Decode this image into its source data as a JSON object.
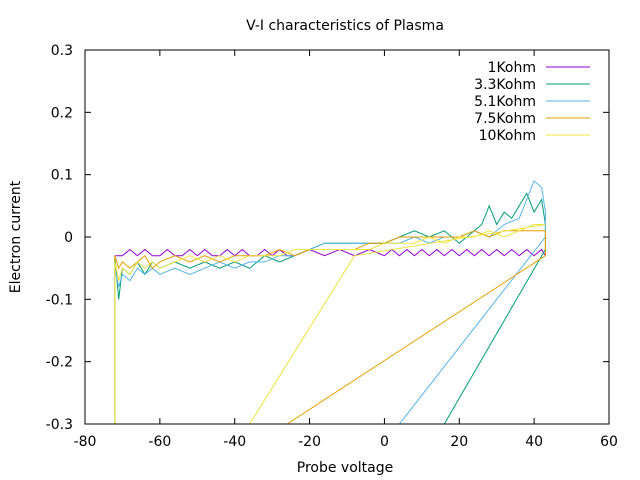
{
  "chart_data": {
    "type": "line",
    "title": "V-I characteristics of Plasma",
    "xlabel": "Probe voltage",
    "ylabel": "Electron current",
    "xlim": [
      -80,
      60
    ],
    "ylim": [
      -0.3,
      0.3
    ],
    "xticks": [
      -80,
      -60,
      -40,
      -20,
      0,
      20,
      40,
      60
    ],
    "xtick_labels": [
      "-80",
      "-60",
      "-40",
      "-20",
      "0",
      "20",
      "40",
      "60"
    ],
    "yticks": [
      -0.3,
      -0.2,
      -0.1,
      0,
      0.1,
      0.2,
      0.3
    ],
    "ytick_labels": [
      "-0.3",
      "-0.2",
      "-0.1",
      "0",
      "0.1",
      "0.2",
      "0.3"
    ],
    "grid": false,
    "legend_position": "top-right",
    "series": [
      {
        "name": "1Kohm",
        "color": "#9400d3",
        "points": [
          [
            -72,
            -0.03
          ],
          [
            -70,
            -0.03
          ],
          [
            -68,
            -0.02
          ],
          [
            -66,
            -0.03
          ],
          [
            -64,
            -0.02
          ],
          [
            -62,
            -0.03
          ],
          [
            -60,
            -0.03
          ],
          [
            -58,
            -0.02
          ],
          [
            -56,
            -0.03
          ],
          [
            -54,
            -0.03
          ],
          [
            -52,
            -0.02
          ],
          [
            -50,
            -0.03
          ],
          [
            -48,
            -0.02
          ],
          [
            -46,
            -0.03
          ],
          [
            -44,
            -0.03
          ],
          [
            -42,
            -0.02
          ],
          [
            -40,
            -0.03
          ],
          [
            -38,
            -0.02
          ],
          [
            -36,
            -0.03
          ],
          [
            -34,
            -0.03
          ],
          [
            -32,
            -0.02
          ],
          [
            -30,
            -0.03
          ],
          [
            -28,
            -0.02
          ],
          [
            -26,
            -0.03
          ],
          [
            -24,
            -0.03
          ],
          [
            -20,
            -0.02
          ],
          [
            -16,
            -0.03
          ],
          [
            -12,
            -0.02
          ],
          [
            -8,
            -0.03
          ],
          [
            -4,
            -0.02
          ],
          [
            0,
            -0.03
          ],
          [
            2,
            -0.02
          ],
          [
            4,
            -0.03
          ],
          [
            6,
            -0.02
          ],
          [
            8,
            -0.03
          ],
          [
            10,
            -0.02
          ],
          [
            12,
            -0.03
          ],
          [
            14,
            -0.02
          ],
          [
            16,
            -0.03
          ],
          [
            18,
            -0.02
          ],
          [
            20,
            -0.03
          ],
          [
            22,
            -0.02
          ],
          [
            24,
            -0.03
          ],
          [
            26,
            -0.02
          ],
          [
            28,
            -0.03
          ],
          [
            30,
            -0.02
          ],
          [
            32,
            -0.03
          ],
          [
            34,
            -0.02
          ],
          [
            36,
            -0.03
          ],
          [
            38,
            -0.02
          ],
          [
            40,
            -0.03
          ],
          [
            42,
            -0.02
          ],
          [
            43,
            -0.03
          ]
        ]
      },
      {
        "name": "3.3Kohm",
        "color": "#009e73",
        "points": [
          [
            -72,
            -0.3
          ],
          [
            -72,
            -0.03
          ],
          [
            -71,
            -0.1
          ],
          [
            -70,
            -0.05
          ],
          [
            -68,
            -0.06
          ],
          [
            -66,
            -0.04
          ],
          [
            -64,
            -0.06
          ],
          [
            -62,
            -0.04
          ],
          [
            -60,
            -0.05
          ],
          [
            -56,
            -0.04
          ],
          [
            -52,
            -0.05
          ],
          [
            -48,
            -0.04
          ],
          [
            -44,
            -0.05
          ],
          [
            -40,
            -0.04
          ],
          [
            -36,
            -0.05
          ],
          [
            -32,
            -0.03
          ],
          [
            -28,
            -0.04
          ],
          [
            -24,
            -0.03
          ],
          [
            -20,
            -0.02
          ],
          [
            -16,
            -0.01
          ],
          [
            -12,
            -0.01
          ],
          [
            -8,
            -0.01
          ],
          [
            -4,
            -0.01
          ],
          [
            0,
            -0.01
          ],
          [
            4,
            0.0
          ],
          [
            8,
            0.01
          ],
          [
            12,
            0.0
          ],
          [
            16,
            0.01
          ],
          [
            20,
            -0.01
          ],
          [
            24,
            0.01
          ],
          [
            26,
            0.02
          ],
          [
            28,
            0.05
          ],
          [
            30,
            0.02
          ],
          [
            32,
            0.04
          ],
          [
            34,
            0.03
          ],
          [
            36,
            0.05
          ],
          [
            38,
            0.07
          ],
          [
            40,
            0.04
          ],
          [
            42,
            0.06
          ],
          [
            43,
            0.02
          ],
          [
            43,
            -0.02
          ],
          [
            16,
            -0.3
          ]
        ]
      },
      {
        "name": "5.1Kohm",
        "color": "#56b4e9",
        "points": [
          [
            -72,
            -0.3
          ],
          [
            -72,
            -0.05
          ],
          [
            -71,
            -0.08
          ],
          [
            -70,
            -0.06
          ],
          [
            -68,
            -0.07
          ],
          [
            -66,
            -0.05
          ],
          [
            -64,
            -0.06
          ],
          [
            -62,
            -0.05
          ],
          [
            -60,
            -0.06
          ],
          [
            -56,
            -0.05
          ],
          [
            -52,
            -0.06
          ],
          [
            -48,
            -0.05
          ],
          [
            -44,
            -0.04
          ],
          [
            -40,
            -0.05
          ],
          [
            -36,
            -0.04
          ],
          [
            -32,
            -0.04
          ],
          [
            -28,
            -0.03
          ],
          [
            -24,
            -0.03
          ],
          [
            -20,
            -0.02
          ],
          [
            -16,
            -0.01
          ],
          [
            -12,
            -0.01
          ],
          [
            -8,
            -0.01
          ],
          [
            -4,
            -0.01
          ],
          [
            0,
            -0.01
          ],
          [
            4,
            -0.01
          ],
          [
            8,
            0.0
          ],
          [
            12,
            -0.01
          ],
          [
            16,
            0.0
          ],
          [
            20,
            0.0
          ],
          [
            24,
            0.01
          ],
          [
            28,
            0.0
          ],
          [
            32,
            0.02
          ],
          [
            36,
            0.03
          ],
          [
            38,
            0.06
          ],
          [
            40,
            0.09
          ],
          [
            42,
            0.08
          ],
          [
            43,
            0.04
          ],
          [
            43,
            0.0
          ],
          [
            4,
            -0.3
          ]
        ]
      },
      {
        "name": "7.5Kohm",
        "color": "#e69f00",
        "points": [
          [
            -72,
            -0.3
          ],
          [
            -72,
            -0.03
          ],
          [
            -71,
            -0.05
          ],
          [
            -70,
            -0.04
          ],
          [
            -68,
            -0.05
          ],
          [
            -66,
            -0.04
          ],
          [
            -64,
            -0.03
          ],
          [
            -62,
            -0.05
          ],
          [
            -60,
            -0.04
          ],
          [
            -56,
            -0.03
          ],
          [
            -52,
            -0.04
          ],
          [
            -48,
            -0.03
          ],
          [
            -44,
            -0.04
          ],
          [
            -40,
            -0.03
          ],
          [
            -36,
            -0.03
          ],
          [
            -32,
            -0.03
          ],
          [
            -28,
            -0.02
          ],
          [
            -24,
            -0.03
          ],
          [
            -20,
            -0.02
          ],
          [
            -16,
            -0.02
          ],
          [
            -12,
            -0.02
          ],
          [
            -8,
            -0.02
          ],
          [
            -4,
            -0.01
          ],
          [
            0,
            -0.01
          ],
          [
            4,
            0.0
          ],
          [
            8,
            0.0
          ],
          [
            12,
            0.0
          ],
          [
            16,
            0.0
          ],
          [
            20,
            0.0
          ],
          [
            24,
            0.01
          ],
          [
            28,
            0.0
          ],
          [
            32,
            0.01
          ],
          [
            36,
            0.01
          ],
          [
            40,
            0.01
          ],
          [
            43,
            0.01
          ],
          [
            43,
            -0.03
          ],
          [
            -26,
            -0.3
          ]
        ]
      },
      {
        "name": "10Kohm",
        "color": "#f0e442",
        "points": [
          [
            -72,
            -0.3
          ],
          [
            -72,
            -0.04
          ],
          [
            -71,
            -0.07
          ],
          [
            -70,
            -0.05
          ],
          [
            -68,
            -0.06
          ],
          [
            -66,
            -0.04
          ],
          [
            -64,
            -0.05
          ],
          [
            -62,
            -0.04
          ],
          [
            -60,
            -0.05
          ],
          [
            -56,
            -0.04
          ],
          [
            -52,
            -0.03
          ],
          [
            -48,
            -0.04
          ],
          [
            -44,
            -0.03
          ],
          [
            -40,
            -0.04
          ],
          [
            -36,
            -0.03
          ],
          [
            -32,
            -0.03
          ],
          [
            -28,
            -0.03
          ],
          [
            -24,
            -0.02
          ],
          [
            -20,
            -0.02
          ],
          [
            -16,
            -0.02
          ],
          [
            -12,
            -0.02
          ],
          [
            -8,
            -0.02
          ],
          [
            -4,
            -0.02
          ],
          [
            0,
            -0.01
          ],
          [
            4,
            -0.01
          ],
          [
            8,
            -0.01
          ],
          [
            12,
            0.0
          ],
          [
            16,
            -0.01
          ],
          [
            20,
            0.0
          ],
          [
            24,
            0.0
          ],
          [
            28,
            0.01
          ],
          [
            32,
            0.0
          ],
          [
            36,
            0.01
          ],
          [
            40,
            0.02
          ],
          [
            43,
            0.02
          ],
          [
            -8,
            -0.03
          ],
          [
            -36,
            -0.3
          ]
        ]
      }
    ]
  }
}
